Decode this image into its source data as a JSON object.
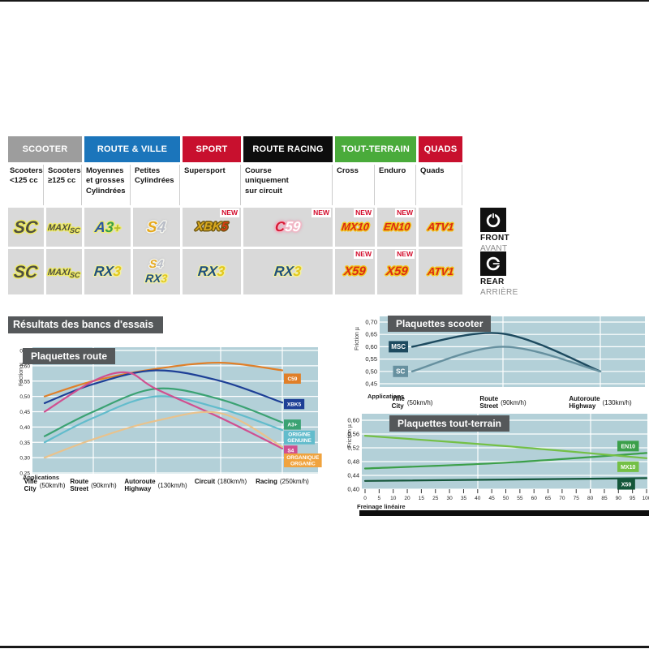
{
  "theme": {
    "chart_bg": "#b3d0d8",
    "grid": "#ffffff",
    "title_box": "#55585a",
    "cell_bg": "#d9d9d9",
    "new_red": "#d30c2c"
  },
  "labels": {
    "new_badge": "NEW",
    "applications": "Applications"
  },
  "section_title": "Résultats des bancs d'essais",
  "markers": {
    "front": {
      "label": "FRONT",
      "sub": "AVANT"
    },
    "rear": {
      "label": "REAR",
      "sub": "ARRIÈRE"
    }
  },
  "table": {
    "groups": [
      {
        "label": "SCOOTER",
        "color": "#9d9d9d",
        "span": 2
      },
      {
        "label": "ROUTE & VILLE",
        "color": "#1b75bb",
        "span": 2
      },
      {
        "label": "SPORT",
        "color": "#c8102e",
        "span": 1
      },
      {
        "label": "ROUTE RACING",
        "color": "#0d0d0d",
        "span": 1
      },
      {
        "label": "TOUT-TERRAIN",
        "color": "#4aab3b",
        "span": 2
      },
      {
        "label": "QUADS",
        "color": "#c8102e",
        "span": 1
      }
    ],
    "columns": [
      "Scooters\n<125 cc",
      "Scooters\n≥125 cc",
      "Moyennes\net grosses\nCylindrées",
      "Petites\nCylindrées",
      "Supersport",
      "Course\nuniquement\nsur circuit",
      "Cross",
      "Enduro",
      "Quads"
    ],
    "rows": {
      "front": [
        {
          "logo": "SC"
        },
        {
          "logo": "MAXISC"
        },
        {
          "logo": "A3PLUS"
        },
        {
          "logo": "S4"
        },
        {
          "logo": "XBK5",
          "new": true
        },
        {
          "logo": "C59",
          "new": true
        },
        {
          "logo": "MX10",
          "new": true
        },
        {
          "logo": "EN10",
          "new": true
        },
        {
          "logo": "ATV1"
        }
      ],
      "rear": [
        {
          "logo": "SC"
        },
        {
          "logo": "MAXISC"
        },
        {
          "logo": "RX3"
        },
        {
          "stack": [
            "S4_SMALL",
            "RX3_SMALL"
          ]
        },
        {
          "logo": "RX3"
        },
        {
          "logo": "RX3"
        },
        {
          "logo": "X59",
          "new": true
        },
        {
          "logo": "X59",
          "new": true
        },
        {
          "logo": "ATV1"
        }
      ]
    }
  },
  "logos": {
    "SC": {
      "size": 21,
      "outline": "#eeea60",
      "segments": [
        {
          "t": "SC",
          "c": "#50503f"
        }
      ]
    },
    "MAXISC": {
      "size": 11,
      "outline": "#eeea60",
      "segments": [
        {
          "t": "MAXI",
          "c": "#50503f"
        },
        {
          "t": "SC",
          "c": "#50503f",
          "size": 9,
          "dy": 3
        }
      ]
    },
    "A3PLUS": {
      "size": 18,
      "outline": "#efec74",
      "segments": [
        {
          "t": "A",
          "c": "#2a55a5"
        },
        {
          "t": "3",
          "c": "#3aa047"
        },
        {
          "t": "+",
          "c": "#b3b92a",
          "size": 15
        }
      ]
    },
    "S4": {
      "size": 19,
      "outline": "#f4f4ee",
      "glow": "0 0 3px #777777",
      "segments": [
        {
          "t": "S",
          "c": "#e7a91c"
        },
        {
          "t": "4",
          "c": "#b9bdc7"
        }
      ]
    },
    "S4_SMALL": {
      "size": 14,
      "outline": "#f4f4ee",
      "glow": "0 0 3px #777777",
      "segments": [
        {
          "t": "S",
          "c": "#e7a91c"
        },
        {
          "t": "4",
          "c": "#b9bdc7"
        }
      ]
    },
    "XBK5": {
      "size": 15,
      "outline": "#6e5713",
      "glow": "0 0 4px #ffffff",
      "segments": [
        {
          "t": "XBK",
          "c": "#d9a91c"
        },
        {
          "t": "5",
          "c": "#da3a12"
        }
      ]
    },
    "C59": {
      "size": 17,
      "outline": "#f3b7c6",
      "glow": "0 0 4px #e25f86",
      "segments": [
        {
          "t": "C",
          "c": "#d71a35"
        },
        {
          "t": "59",
          "c": "#ffffff"
        }
      ]
    },
    "MX10": {
      "size": 13,
      "outline": "#f2c61c",
      "segments": [
        {
          "t": "MX10",
          "c": "#da2a14"
        }
      ]
    },
    "EN10": {
      "size": 13,
      "outline": "#f2c61c",
      "segments": [
        {
          "t": "EN10",
          "c": "#da2a14"
        }
      ]
    },
    "ATV1": {
      "size": 13,
      "outline": "#f2c61c",
      "segments": [
        {
          "t": "ATV1",
          "c": "#da2a14"
        }
      ]
    },
    "X59": {
      "size": 15,
      "outline": "#f2c61c",
      "segments": [
        {
          "t": "X59",
          "c": "#da2a14"
        }
      ]
    },
    "RX3": {
      "size": 17,
      "outline": "#f2efa2",
      "segments": [
        {
          "t": "RX",
          "c": "#1e4f7e"
        },
        {
          "t": "3",
          "c": "#e3c81e"
        }
      ]
    },
    "RX3_SMALL": {
      "size": 14,
      "outline": "#f2efa2",
      "segments": [
        {
          "t": "RX",
          "c": "#1e4f7e"
        },
        {
          "t": "3",
          "c": "#e3c81e"
        }
      ]
    }
  },
  "chart_data": [
    {
      "id": "route",
      "type": "line",
      "title": "Plaquettes route",
      "ylabel": "Friction µ",
      "xnote": "Applications",
      "ylim": [
        0.25,
        0.65
      ],
      "yticks": [
        0.25,
        0.3,
        0.35,
        0.4,
        0.45,
        0.5,
        0.55,
        0.6,
        0.65
      ],
      "categories": [
        {
          "name": "Ville",
          "sub": "City",
          "speed": "(50km/h)"
        },
        {
          "name": "Route",
          "sub": "Street",
          "speed": "(90km/h)"
        },
        {
          "name": "Autoroute",
          "sub": "Highway",
          "speed": "(130km/h)"
        },
        {
          "name": "Circuit",
          "speed": "(180km/h)"
        },
        {
          "name": "Racing",
          "speed": "(250km/h)"
        }
      ],
      "series": [
        {
          "name": "C59",
          "color": "#e07f28",
          "values": [
            0.5,
            0.55,
            0.59,
            0.61,
            0.585
          ],
          "label_mu": 0.558
        },
        {
          "name": "XBK5",
          "color": "#1d3f96",
          "values": [
            0.478,
            0.54,
            0.585,
            0.55,
            0.48
          ],
          "label_mu": 0.475
        },
        {
          "name": "A3+",
          "color": "#3ba273",
          "values": [
            0.37,
            0.45,
            0.525,
            0.49,
            0.415
          ],
          "label_mu": 0.408
        },
        {
          "name": "ORIGINE\nGENUINE",
          "color": "#62bccc",
          "values": [
            0.35,
            0.43,
            0.5,
            0.46,
            0.39
          ],
          "label_mu": 0.366
        },
        {
          "name": "S4",
          "color": "#d04f90",
          "x": [
            0,
            1,
            1.55,
            2,
            3,
            4
          ],
          "values": [
            0.45,
            0.55,
            0.578,
            0.525,
            0.43,
            0.33
          ],
          "label_mu": 0.323
        },
        {
          "name": "ORGANIQUE\nORGANIC",
          "color": "#e9c28c",
          "box": "#f0a33e",
          "values": [
            0.3,
            0.36,
            0.42,
            0.445,
            0.335
          ],
          "label_mu": 0.291
        }
      ]
    },
    {
      "id": "scooter",
      "type": "line",
      "title": "Plaquettes scooter",
      "ylabel": "Friction µ",
      "xnote": "Applications",
      "ylim": [
        0.45,
        0.7
      ],
      "yticks": [
        0.45,
        0.5,
        0.55,
        0.6,
        0.65,
        0.7
      ],
      "categories": [
        {
          "name": "Ville",
          "sub": "City",
          "speed": "(50km/h)"
        },
        {
          "name": "Route",
          "sub": "Street",
          "speed": "(90km/h)"
        },
        {
          "name": "Autoroute",
          "sub": "Highway",
          "speed": "(130km/h)"
        }
      ],
      "series": [
        {
          "name": "MSC",
          "color": "#1d4a5f",
          "values": [
            0.6,
            0.653,
            0.5
          ],
          "label_mu": 0.6
        },
        {
          "name": "SC",
          "color": "#66909f",
          "values": [
            0.5,
            0.6,
            0.5
          ],
          "label_mu": 0.5
        }
      ]
    },
    {
      "id": "tout",
      "type": "line",
      "title": "Plaquettes tout-terrain",
      "ylabel": "Friction µ",
      "xlabel": "Freinage linéaire",
      "ylim": [
        0.4,
        0.6
      ],
      "yticks": [
        0.4,
        0.44,
        0.48,
        0.52,
        0.56,
        0.6
      ],
      "xrange": [
        0,
        100
      ],
      "xticks": [
        "0",
        "5",
        "10",
        "20",
        "15",
        "25",
        "30",
        "35",
        "40",
        "45",
        "50",
        "55",
        "60",
        "65",
        "70",
        "75",
        "80",
        "85",
        "90",
        "95",
        "100"
      ],
      "series": [
        {
          "name": "EN10",
          "color": "#3b9f49",
          "x": [
            0,
            50,
            100
          ],
          "values": [
            0.46,
            0.477,
            0.505
          ],
          "label_mu": 0.525
        },
        {
          "name": "MX10",
          "color": "#74c046",
          "x": [
            0,
            50,
            100
          ],
          "values": [
            0.555,
            0.525,
            0.49
          ],
          "label_mu": 0.465
        },
        {
          "name": "X59",
          "color": "#14563a",
          "x": [
            0,
            100
          ],
          "values": [
            0.424,
            0.432
          ],
          "label_mu": 0.414
        }
      ]
    }
  ]
}
